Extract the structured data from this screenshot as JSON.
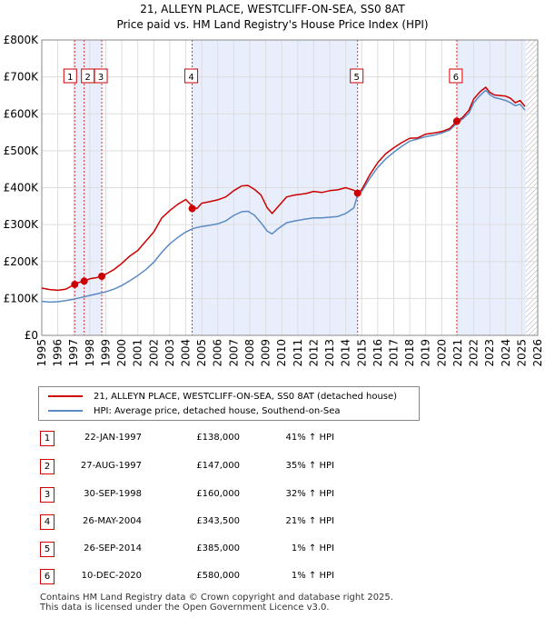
{
  "title_line1": "21, ALLEYN PLACE, WESTCLIFF-ON-SEA, SS0 8AT",
  "title_line2": "Price paid vs. HM Land Registry's House Price Index (HPI)",
  "chart_data": {
    "type": "line",
    "title": "21, ALLEYN PLACE, WESTCLIFF-ON-SEA, SS0 8AT — Price paid vs. HM Land Registry's House Price Index (HPI)",
    "xlabel": "",
    "ylabel": "",
    "xlim": [
      1995,
      2026
    ],
    "ylim": [
      0,
      800000
    ],
    "x_ticks": [
      "1995",
      "1996",
      "1997",
      "1998",
      "1999",
      "2000",
      "2001",
      "2002",
      "2003",
      "2004",
      "2005",
      "2006",
      "2007",
      "2008",
      "2009",
      "2010",
      "2011",
      "2012",
      "2013",
      "2014",
      "2015",
      "2016",
      "2017",
      "2018",
      "2019",
      "2020",
      "2021",
      "2022",
      "2023",
      "2024",
      "2025",
      "2026"
    ],
    "y_ticks": [
      {
        "value": 0,
        "label": "£0"
      },
      {
        "value": 100000,
        "label": "£100K"
      },
      {
        "value": 200000,
        "label": "£200K"
      },
      {
        "value": 300000,
        "label": "£300K"
      },
      {
        "value": 400000,
        "label": "£400K"
      },
      {
        "value": 500000,
        "label": "£500K"
      },
      {
        "value": 600000,
        "label": "£600K"
      },
      {
        "value": 700000,
        "label": "£700K"
      },
      {
        "value": 800000,
        "label": "£800K"
      }
    ],
    "grid": true,
    "series": [
      {
        "name": "21, ALLEYN PLACE, WESTCLIFF-ON-SEA, SS0 8AT (detached house)",
        "color": "#cc0000",
        "x": [
          1995.0,
          1995.5,
          1996.0,
          1996.5,
          1997.06,
          1997.3,
          1997.65,
          1998.0,
          1998.5,
          1998.75,
          1999.0,
          1999.5,
          2000.0,
          2000.5,
          2001.0,
          2001.5,
          2002.0,
          2002.5,
          2003.0,
          2003.5,
          2004.0,
          2004.4,
          2004.7,
          2005.0,
          2005.5,
          2006.0,
          2006.5,
          2007.0,
          2007.5,
          2007.9,
          2008.3,
          2008.7,
          2009.1,
          2009.4,
          2009.8,
          2010.3,
          2010.8,
          2011.5,
          2012.0,
          2012.5,
          2013.0,
          2013.5,
          2014.0,
          2014.5,
          2014.74,
          2015.0,
          2015.5,
          2016.0,
          2016.5,
          2017.0,
          2017.5,
          2018.0,
          2018.5,
          2019.0,
          2019.5,
          2020.0,
          2020.5,
          2020.94,
          2021.3,
          2021.7,
          2022.0,
          2022.4,
          2022.75,
          2023.0,
          2023.3,
          2023.7,
          2024.0,
          2024.3,
          2024.6,
          2024.9,
          2025.2
        ],
        "y": [
          128000,
          124000,
          122000,
          125000,
          138000,
          143000,
          147000,
          153000,
          157000,
          160000,
          166000,
          178000,
          195000,
          215000,
          230000,
          255000,
          280000,
          318000,
          338000,
          355000,
          368000,
          350000,
          343500,
          358000,
          362000,
          367000,
          375000,
          392000,
          405000,
          406000,
          395000,
          380000,
          345000,
          330000,
          350000,
          375000,
          380000,
          384000,
          390000,
          387000,
          392000,
          394000,
          400000,
          393000,
          385000,
          395000,
          435000,
          468000,
          492000,
          508000,
          522000,
          534000,
          535000,
          545000,
          548000,
          552000,
          560000,
          580000,
          590000,
          610000,
          640000,
          660000,
          672000,
          658000,
          651000,
          649000,
          648000,
          642000,
          630000,
          636000,
          620000
        ]
      },
      {
        "name": "HPI: Average price, detached house, Southend-on-Sea",
        "color": "#5b8ac4",
        "x": [
          1995.0,
          1995.5,
          1996.0,
          1996.5,
          1997.0,
          1997.5,
          1998.0,
          1998.5,
          1999.0,
          1999.5,
          2000.0,
          2000.5,
          2001.0,
          2001.5,
          2002.0,
          2002.5,
          2003.0,
          2003.5,
          2004.0,
          2004.5,
          2005.0,
          2005.5,
          2006.0,
          2006.5,
          2007.0,
          2007.5,
          2007.9,
          2008.3,
          2008.7,
          2009.1,
          2009.4,
          2009.8,
          2010.3,
          2010.8,
          2011.5,
          2012.0,
          2012.5,
          2013.0,
          2013.5,
          2014.0,
          2014.5,
          2014.74,
          2015.0,
          2015.5,
          2016.0,
          2016.5,
          2017.0,
          2017.5,
          2018.0,
          2018.5,
          2019.0,
          2019.5,
          2020.0,
          2020.5,
          2020.94,
          2021.3,
          2021.7,
          2022.0,
          2022.4,
          2022.75,
          2023.0,
          2023.3,
          2023.7,
          2024.0,
          2024.3,
          2024.6,
          2024.9,
          2025.2
        ],
        "y": [
          92000,
          90000,
          91000,
          94000,
          98000,
          103000,
          108000,
          113000,
          118000,
          125000,
          135000,
          148000,
          162000,
          178000,
          198000,
          225000,
          248000,
          265000,
          280000,
          290000,
          295000,
          298000,
          302000,
          310000,
          325000,
          335000,
          336000,
          325000,
          305000,
          282000,
          275000,
          290000,
          305000,
          310000,
          315000,
          318000,
          318000,
          320000,
          322000,
          330000,
          345000,
          380000,
          390000,
          425000,
          455000,
          478000,
          496000,
          512000,
          526000,
          532000,
          538000,
          542000,
          548000,
          556000,
          574000,
          586000,
          602000,
          630000,
          650000,
          664000,
          652000,
          644000,
          640000,
          636000,
          630000,
          622000,
          626000,
          610000
        ]
      }
    ],
    "sales": [
      {
        "num": "1",
        "x": 1997.06,
        "y": 138000
      },
      {
        "num": "2",
        "x": 1997.65,
        "y": 147000
      },
      {
        "num": "3",
        "x": 1998.75,
        "y": 160000
      },
      {
        "num": "4",
        "x": 2004.4,
        "y": 343500
      },
      {
        "num": "5",
        "x": 2014.74,
        "y": 385000
      },
      {
        "num": "6",
        "x": 2020.94,
        "y": 580000
      }
    ],
    "shaded_ranges": [
      [
        1997.06,
        1998.75
      ],
      [
        2004.4,
        2014.74
      ],
      [
        2020.94,
        2025.25
      ]
    ],
    "hatched_from": 2025.25
  },
  "legend": {
    "property_label": "21, ALLEYN PLACE, WESTCLIFF-ON-SEA, SS0 8AT (detached house)",
    "hpi_label": "HPI: Average price, detached house, Southend-on-Sea",
    "property_color": "#cc0000",
    "hpi_color": "#5b8ac4"
  },
  "transactions": [
    {
      "num": "1",
      "date": "22-JAN-1997",
      "price": "£138,000",
      "hpi": "41% ↑ HPI"
    },
    {
      "num": "2",
      "date": "27-AUG-1997",
      "price": "£147,000",
      "hpi": "35% ↑ HPI"
    },
    {
      "num": "3",
      "date": "30-SEP-1998",
      "price": "£160,000",
      "hpi": "32% ↑ HPI"
    },
    {
      "num": "4",
      "date": "26-MAY-2004",
      "price": "£343,500",
      "hpi": "21% ↑ HPI"
    },
    {
      "num": "5",
      "date": "26-SEP-2014",
      "price": "£385,000",
      "hpi": "1% ↑ HPI"
    },
    {
      "num": "6",
      "date": "10-DEC-2020",
      "price": "£580,000",
      "hpi": "1% ↑ HPI"
    }
  ],
  "footer_line1": "Contains HM Land Registry data © Crown copyright and database right 2025.",
  "footer_line2": "This data is licensed under the Open Government Licence v3.0."
}
